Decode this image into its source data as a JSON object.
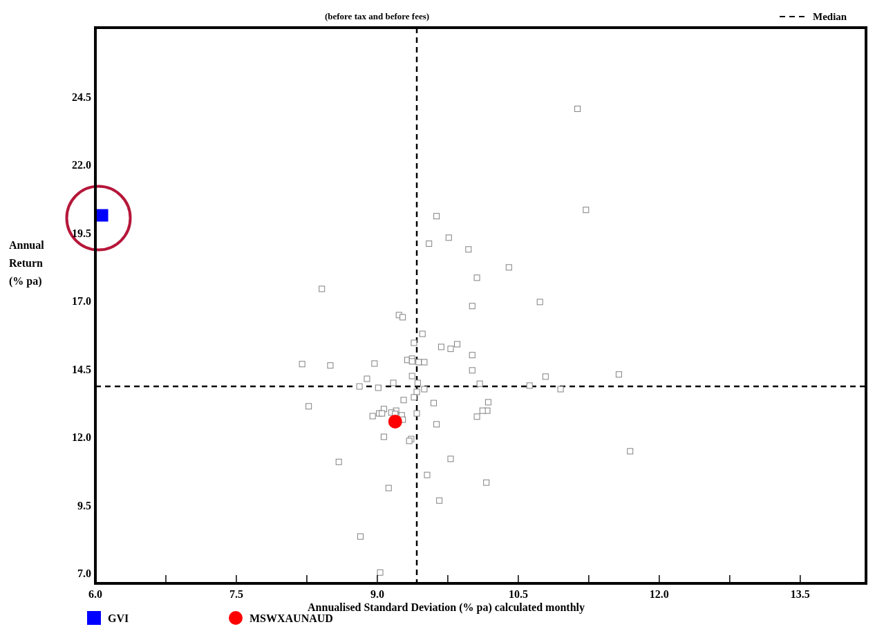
{
  "chart_data": {
    "type": "scatter",
    "subtitle": "(before tax and before fees)",
    "xlabel": "Annualised Standard Deviation (% pa) calculated monthly",
    "ylabel": "Annual\nReturn\n(% pa)",
    "xlim": [
      6,
      14.2
    ],
    "ylim": [
      6.65,
      27.05
    ],
    "xticks": [
      {
        "value": 6,
        "label": "6.0"
      },
      {
        "value": 6.75,
        "label": null
      },
      {
        "value": 7.5,
        "label": "7.5"
      },
      {
        "value": 8.25,
        "label": null
      },
      {
        "value": 9,
        "label": "9.0"
      },
      {
        "value": 9.75,
        "label": null
      },
      {
        "value": 10.5,
        "label": "10.5"
      },
      {
        "value": 11.25,
        "label": null
      },
      {
        "value": 12,
        "label": "12.0"
      },
      {
        "value": 12.75,
        "label": null
      },
      {
        "value": 13.5,
        "label": "13.5"
      }
    ],
    "yticks": [
      {
        "value": 7,
        "label": "7.0"
      },
      9.5,
      {
        "value": 12,
        "label": "12.0"
      },
      14.5,
      {
        "value": 17,
        "label": "17.0"
      },
      19.5,
      {
        "value": 22,
        "label": "22.0"
      },
      24.5
    ],
    "grid": false,
    "legend": "bottom",
    "ref_lines": [
      {
        "axis": "x",
        "value": 9.42,
        "label": "Median",
        "color": "#000000",
        "line_style": "dashed"
      },
      {
        "axis": "y",
        "value": 13.88,
        "color": "#000000",
        "line_style": "dashed"
      }
    ],
    "series": [
      {
        "color": "#808080",
        "marker": "square",
        "x": [
          11.13,
          11.22,
          9.63,
          9.76,
          9.55,
          9.97,
          10.4,
          10.06,
          8.41,
          10.73,
          10.01,
          9.23,
          9.27,
          9.48,
          9.39,
          9.85,
          9.68,
          9.78,
          10.01,
          9.32,
          9.37,
          9.37,
          9.44,
          9.5,
          8.2,
          8.5,
          8.97,
          10.01,
          9.37,
          8.89,
          10.79,
          11.57,
          9.17,
          8.81,
          9.01,
          9.43,
          10.09,
          9.5,
          9.42,
          10.62,
          10.95,
          9.39,
          9.28,
          10.18,
          9.6,
          8.27,
          9.07,
          9.2,
          10.17,
          10.12,
          9.02,
          9.05,
          9.15,
          9.19,
          9.42,
          8.95,
          9.26,
          9.27,
          10.06,
          9.63,
          9.07,
          9.36,
          9.34,
          11.69,
          8.59,
          9.78,
          9.53,
          10.16,
          9.12,
          9.66,
          8.82,
          9.03
        ],
        "values": [
          24.07,
          20.36,
          20.13,
          19.34,
          19.12,
          18.91,
          18.25,
          17.87,
          17.46,
          16.98,
          16.83,
          16.5,
          16.42,
          15.81,
          15.48,
          15.43,
          15.33,
          15.26,
          15.03,
          14.85,
          14.9,
          14.8,
          14.77,
          14.77,
          14.7,
          14.65,
          14.72,
          14.47,
          14.26,
          14.16,
          14.24,
          14.32,
          14.01,
          13.88,
          13.83,
          14.01,
          13.98,
          13.78,
          13.68,
          13.91,
          13.78,
          13.48,
          13.38,
          13.3,
          13.27,
          13.15,
          13.05,
          12.99,
          12.99,
          12.99,
          12.89,
          12.89,
          12.92,
          12.87,
          12.89,
          12.79,
          12.82,
          12.66,
          12.77,
          12.49,
          12.03,
          11.95,
          11.88,
          11.5,
          11.11,
          11.22,
          10.63,
          10.35,
          10.15,
          9.69,
          8.37,
          7.05
        ]
      },
      {
        "name": "GVI",
        "color": "#0000ff",
        "marker": "square",
        "x": [
          6.07
        ],
        "values": [
          20.16
        ]
      },
      {
        "name": "MSWXAUNAUD",
        "color": "#ff0000",
        "marker": "circle",
        "x": [
          9.19
        ],
        "values": [
          12.59
        ]
      }
    ]
  }
}
